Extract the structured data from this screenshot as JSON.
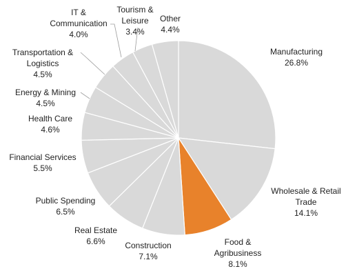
{
  "chart_data": {
    "type": "pie",
    "start_angle_deg": 90,
    "direction": "clockwise",
    "colors": {
      "default": "#d9d9d9",
      "highlight": "#e8822b"
    },
    "slices": [
      {
        "label": [
          "Manufacturing"
        ],
        "value": 26.8,
        "pct": "26.8%",
        "highlight": false
      },
      {
        "label": [
          "Wholesale & Retail",
          "Trade"
        ],
        "value": 14.1,
        "pct": "14.1%",
        "highlight": false
      },
      {
        "label": [
          "Food &",
          "Agribusiness"
        ],
        "value": 8.1,
        "pct": "8.1%",
        "highlight": true
      },
      {
        "label": [
          "Construction"
        ],
        "value": 7.1,
        "pct": "7.1%",
        "highlight": false
      },
      {
        "label": [
          "Real Estate"
        ],
        "value": 6.6,
        "pct": "6.6%",
        "highlight": false
      },
      {
        "label": [
          "Public Spending"
        ],
        "value": 6.5,
        "pct": "6.5%",
        "highlight": false
      },
      {
        "label": [
          "Financial Services"
        ],
        "value": 5.5,
        "pct": "5.5%",
        "highlight": false
      },
      {
        "label": [
          "Health Care"
        ],
        "value": 4.6,
        "pct": "4.6%",
        "highlight": false
      },
      {
        "label": [
          "Energy & Mining"
        ],
        "value": 4.5,
        "pct": "4.5%",
        "highlight": false
      },
      {
        "label": [
          "Transportation &",
          "Logistics"
        ],
        "value": 4.5,
        "pct": "4.5%",
        "highlight": false
      },
      {
        "label": [
          "IT &",
          "Communication"
        ],
        "value": 4.0,
        "pct": "4.0%",
        "highlight": false
      },
      {
        "label": [
          "Tourism &",
          "Leisure"
        ],
        "value": 3.4,
        "pct": "3.4%",
        "highlight": false
      },
      {
        "label": [
          "Other"
        ],
        "value": 4.4,
        "pct": "4.4%",
        "highlight": false
      }
    ]
  }
}
